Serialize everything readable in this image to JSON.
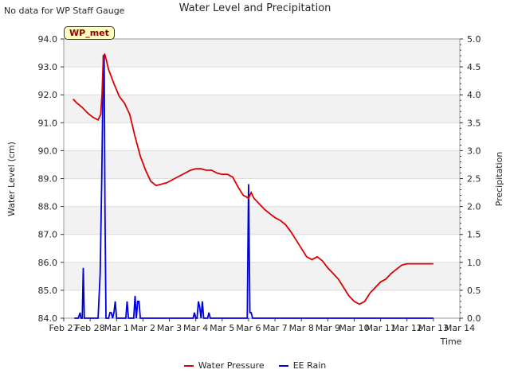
{
  "header": {
    "note": "No data for WP Staff Gauge",
    "badge": "WP_met"
  },
  "colors": {
    "pressure": "#dd0000",
    "rain": "#0000dd",
    "band": "#f2f2f2"
  },
  "legend": {
    "pressure_label": "Water Pressure",
    "rain_label": "EE Rain"
  },
  "chart_data": {
    "type": "line",
    "title": "Water Level and Precipitation",
    "xlabel": "Time",
    "ylabel": "Water Level (cm)",
    "y2label": "Precipitation",
    "ylim": [
      84.0,
      94.0
    ],
    "y2lim": [
      0.0,
      5.0
    ],
    "xlim": [
      0,
      15
    ],
    "grid": true,
    "legend_position": "bottom-center",
    "x_ticks": [
      {
        "x": 0,
        "label": "Feb 27"
      },
      {
        "x": 1,
        "label": "Feb 28"
      },
      {
        "x": 2,
        "label": "Mar 1"
      },
      {
        "x": 3,
        "label": "Mar 2"
      },
      {
        "x": 4,
        "label": "Mar 3"
      },
      {
        "x": 5,
        "label": "Mar 4"
      },
      {
        "x": 6,
        "label": "Mar 5"
      },
      {
        "x": 7,
        "label": "Mar 6"
      },
      {
        "x": 8,
        "label": "Mar 7"
      },
      {
        "x": 9,
        "label": "Mar 8"
      },
      {
        "x": 10,
        "label": "Mar 9"
      },
      {
        "x": 11,
        "label": "Mar 10"
      },
      {
        "x": 12,
        "label": "Mar 11"
      },
      {
        "x": 13,
        "label": "Mar 12"
      },
      {
        "x": 14,
        "label": "Mar 13"
      },
      {
        "x": 15,
        "label": "Mar 14"
      }
    ],
    "y_ticks": [
      "84.0",
      "85.0",
      "86.0",
      "87.0",
      "88.0",
      "89.0",
      "90.0",
      "91.0",
      "92.0",
      "93.0",
      "94.0"
    ],
    "y2_ticks": [
      "0.0",
      "0.5",
      "1.0",
      "1.5",
      "2.0",
      "2.5",
      "3.0",
      "3.5",
      "4.0",
      "4.5",
      "5.0"
    ],
    "series": [
      {
        "name": "Water Pressure",
        "axis": "left",
        "x": [
          0.35,
          0.5,
          0.7,
          0.9,
          1.1,
          1.3,
          1.4,
          1.45,
          1.5,
          1.55,
          1.6,
          1.7,
          1.9,
          2.1,
          2.3,
          2.5,
          2.7,
          2.9,
          3.1,
          3.3,
          3.5,
          3.7,
          3.9,
          4.0,
          4.2,
          4.4,
          4.6,
          4.8,
          5.0,
          5.2,
          5.4,
          5.6,
          5.8,
          6.0,
          6.2,
          6.4,
          6.6,
          6.8,
          7.0,
          7.1,
          7.2,
          7.4,
          7.6,
          7.8,
          8.0,
          8.2,
          8.4,
          8.6,
          8.8,
          9.0,
          9.2,
          9.4,
          9.6,
          9.8,
          10.0,
          10.2,
          10.4,
          10.6,
          10.8,
          11.0,
          11.2,
          11.4,
          11.6,
          11.8,
          12.0,
          12.2,
          12.4,
          12.6,
          12.8,
          13.0,
          13.2,
          13.4,
          13.6,
          13.8,
          14.0
        ],
        "values": [
          91.85,
          91.7,
          91.55,
          91.35,
          91.2,
          91.1,
          91.3,
          92.0,
          93.4,
          93.45,
          93.3,
          92.9,
          92.4,
          91.95,
          91.7,
          91.3,
          90.5,
          89.8,
          89.3,
          88.9,
          88.75,
          88.8,
          88.85,
          88.9,
          89.0,
          89.1,
          89.2,
          89.3,
          89.35,
          89.35,
          89.3,
          89.3,
          89.2,
          89.15,
          89.15,
          89.05,
          88.7,
          88.4,
          88.3,
          88.5,
          88.3,
          88.1,
          87.9,
          87.75,
          87.6,
          87.5,
          87.35,
          87.1,
          86.8,
          86.5,
          86.2,
          86.1,
          86.2,
          86.05,
          85.8,
          85.6,
          85.4,
          85.1,
          84.8,
          84.6,
          84.5,
          84.6,
          84.9,
          85.1,
          85.3,
          85.4,
          85.6,
          85.75,
          85.9,
          85.95,
          85.95,
          85.95,
          85.95,
          85.95,
          85.95
        ]
      },
      {
        "name": "EE Rain",
        "axis": "right",
        "x": [
          0.4,
          0.55,
          0.62,
          0.65,
          0.7,
          0.74,
          0.78,
          0.82,
          0.9,
          1.0,
          1.3,
          1.38,
          1.44,
          1.5,
          1.53,
          1.56,
          1.6,
          1.7,
          1.75,
          1.8,
          1.85,
          1.9,
          1.95,
          2.0,
          2.05,
          2.1,
          2.2,
          2.35,
          2.4,
          2.45,
          2.5,
          2.6,
          2.65,
          2.7,
          2.75,
          2.8,
          2.85,
          2.9,
          2.95,
          3.0,
          4.9,
          4.95,
          5.0,
          5.05,
          5.1,
          5.15,
          5.2,
          5.25,
          5.3,
          5.4,
          5.45,
          5.5,
          5.55,
          5.6,
          6.95,
          7.0,
          7.05,
          7.1,
          7.15,
          7.2,
          7.3,
          14.0
        ],
        "values": [
          0.0,
          0.0,
          0.1,
          0.0,
          0.0,
          0.9,
          0.0,
          0.0,
          0.0,
          0.0,
          0.0,
          0.8,
          2.5,
          4.7,
          4.7,
          2.0,
          0.0,
          0.0,
          0.1,
          0.1,
          0.0,
          0.1,
          0.3,
          0.0,
          0.0,
          0.0,
          0.0,
          0.0,
          0.3,
          0.0,
          0.0,
          0.0,
          0.0,
          0.4,
          0.0,
          0.3,
          0.3,
          0.0,
          0.0,
          0.0,
          0.0,
          0.1,
          0.0,
          0.0,
          0.3,
          0.2,
          0.0,
          0.3,
          0.0,
          0.0,
          0.0,
          0.1,
          0.0,
          0.0,
          0.0,
          2.4,
          0.1,
          0.1,
          0.0,
          0.0,
          0.0,
          0.0
        ]
      }
    ]
  }
}
